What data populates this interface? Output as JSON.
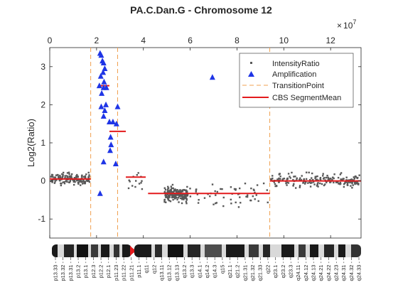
{
  "chart_data": {
    "type": "scatter",
    "title": "PA.C.Dan.G - Chromosome 12",
    "ylabel": "Log2(Ratio)",
    "xlabel": "",
    "x_exponent_label": "10",
    "x_exponent_power": "7",
    "xlim": [
      0,
      13.3
    ],
    "ylim": [
      -1.5,
      3.5
    ],
    "xticks": [
      0,
      2,
      4,
      6,
      8,
      10,
      12
    ],
    "yticks": [
      -1,
      0,
      1,
      2,
      3
    ],
    "grid": false,
    "legend_position": "top-right",
    "legend": [
      {
        "label": "IntensityRatio",
        "marker": "square",
        "color": "#595959"
      },
      {
        "label": "Amplification",
        "marker": "triangle",
        "color": "#1f35e6"
      },
      {
        "label": "TransitionPoint",
        "marker": "dashed-line",
        "color": "#f0a050"
      },
      {
        "label": "CBS SegmentMean",
        "marker": "line",
        "color": "#e31a1c"
      }
    ],
    "transition_points": [
      1.75,
      2.9,
      9.4
    ],
    "segments": [
      {
        "x": [
          0.0,
          1.75
        ],
        "y": 0.05
      },
      {
        "x": [
          2.1,
          2.55
        ],
        "y": 2.5
      },
      {
        "x": [
          2.55,
          3.25
        ],
        "y": 1.3
      },
      {
        "x": [
          3.25,
          4.1
        ],
        "y": 0.1
      },
      {
        "x": [
          4.2,
          9.4
        ],
        "y": -0.33
      },
      {
        "x": [
          9.4,
          13.3
        ],
        "y": 0.0
      }
    ],
    "amplification": [
      [
        2.15,
        3.35
      ],
      [
        2.2,
        3.3
      ],
      [
        2.25,
        3.15
      ],
      [
        2.3,
        3.1
      ],
      [
        2.35,
        2.95
      ],
      [
        2.28,
        2.85
      ],
      [
        2.18,
        2.75
      ],
      [
        2.32,
        2.6
      ],
      [
        2.12,
        2.5
      ],
      [
        2.3,
        2.45
      ],
      [
        2.22,
        2.3
      ],
      [
        2.42,
        2.45
      ],
      [
        2.4,
        2.0
      ],
      [
        2.2,
        1.95
      ],
      [
        2.35,
        1.85
      ],
      [
        2.3,
        1.7
      ],
      [
        2.55,
        1.55
      ],
      [
        2.7,
        1.55
      ],
      [
        2.85,
        1.5
      ],
      [
        2.9,
        1.95
      ],
      [
        2.6,
        1.15
      ],
      [
        2.62,
        0.95
      ],
      [
        2.58,
        0.8
      ],
      [
        2.82,
        0.45
      ],
      [
        2.3,
        0.5
      ],
      [
        2.15,
        -0.33
      ],
      [
        6.95,
        2.72
      ]
    ]
  },
  "ideogram": {
    "centromere_color": "#e31a1c",
    "bands": [
      "p13.33",
      "p13.32",
      "p13.31",
      "p13.2",
      "p13.1",
      "p12.3",
      "p12.2",
      "p12.1",
      "p11.23",
      "p11.22",
      "p11.21",
      "p11.1",
      "q11",
      "q12",
      "q13.11",
      "q13.12",
      "q13.13",
      "q13.2",
      "q13.3",
      "q14.1",
      "q14.2",
      "q14.3",
      "q15",
      "q21.1",
      "q21.2",
      "q21.31",
      "q21.32",
      "q21.33",
      "q22",
      "q23.1",
      "q23.2",
      "q23.3",
      "q24.11",
      "q24.12",
      "q24.13",
      "q24.21",
      "q24.22",
      "q24.23",
      "q24.31",
      "q24.32",
      "q24.33"
    ]
  }
}
